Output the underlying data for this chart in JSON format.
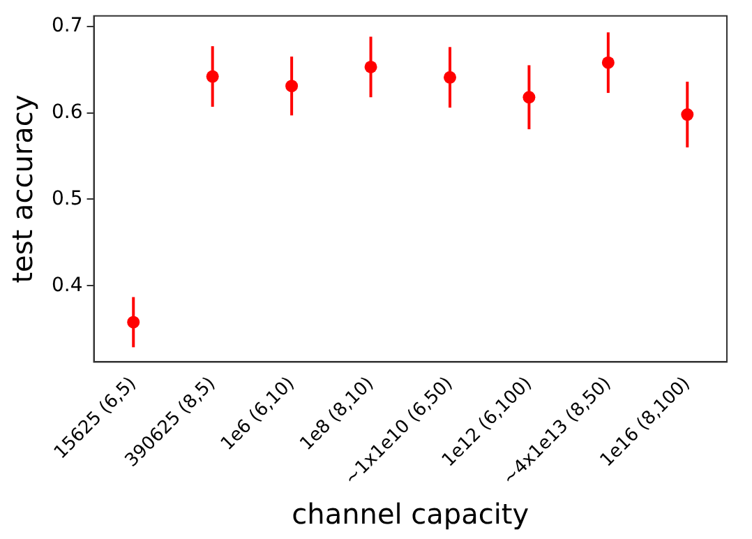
{
  "chart_data": {
    "type": "scatter",
    "xlabel": "channel capacity",
    "ylabel": "test accuracy",
    "categories": [
      "15625 (6,5)",
      "390625 (8,5)",
      "1e6 (6,10)",
      "1e8 (8,10)",
      "~1x1e10 (6,50)",
      "1e12 (6,100)",
      "~4x1e13 (8,50)",
      "1e16 (8,100)"
    ],
    "values": [
      0.358,
      0.642,
      0.631,
      0.653,
      0.641,
      0.618,
      0.658,
      0.598
    ],
    "errors": [
      0.029,
      0.035,
      0.034,
      0.035,
      0.035,
      0.037,
      0.035,
      0.038
    ],
    "color": "#ff0000",
    "marker": "circle",
    "grid": false,
    "legend": false,
    "ylim": [
      0.312,
      0.712
    ],
    "yticks": [
      0.4,
      0.5,
      0.6,
      0.7
    ]
  }
}
